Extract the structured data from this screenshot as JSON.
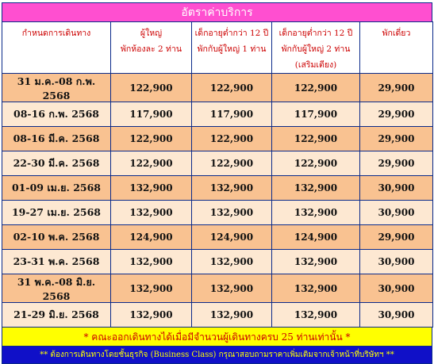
{
  "title": "อัตราค่าบริการ",
  "headers": [
    [
      "กำหนดการเดินทาง"
    ],
    [
      "ผู้ใหญ่",
      "พักห้องละ 2 ท่าน"
    ],
    [
      "เด็กอายุต่ำกว่า 12 ปี",
      "พักกับผู้ใหญ่ 1 ท่าน"
    ],
    [
      "เด็กอายุต่ำกว่า 12 ปี",
      "พักกับผู้ใหญ่ 2 ท่าน",
      "(เสริมเตียง)"
    ],
    [
      "พักเดี่ยว"
    ]
  ],
  "rows": [
    {
      "date": "31 ม.ค.-08 ก.พ. 2568",
      "adult": "122,900",
      "child1": "122,900",
      "child2": "122,900",
      "single": "29,900"
    },
    {
      "date": "08-16 ก.พ. 2568",
      "adult": "117,900",
      "child1": "117,900",
      "child2": "117,900",
      "single": "29,900"
    },
    {
      "date": "08-16 มี.ค. 2568",
      "adult": "122,900",
      "child1": "122,900",
      "child2": "122,900",
      "single": "29,900"
    },
    {
      "date": "22-30 มี.ค. 2568",
      "adult": "122,900",
      "child1": "122,900",
      "child2": "122,900",
      "single": "29,900"
    },
    {
      "date": "01-09 เม.ย. 2568",
      "adult": "132,900",
      "child1": "132,900",
      "child2": "132,900",
      "single": "30,900"
    },
    {
      "date": "19-27 เม.ย. 2568",
      "adult": "132,900",
      "child1": "132,900",
      "child2": "132,900",
      "single": "30,900"
    },
    {
      "date": "02-10 พ.ค. 2568",
      "adult": "124,900",
      "child1": "124,900",
      "child2": "124,900",
      "single": "29,900"
    },
    {
      "date": "23-31 พ.ค. 2568",
      "adult": "132,900",
      "child1": "132,900",
      "child2": "132,900",
      "single": "30,900"
    },
    {
      "date": "31 พ.ค.-08 มิ.ย. 2568",
      "adult": "132,900",
      "child1": "132,900",
      "child2": "132,900",
      "single": "30,900"
    },
    {
      "date": "21-29 มิ.ย. 2568",
      "adult": "132,900",
      "child1": "132,900",
      "child2": "132,900",
      "single": "30,900"
    }
  ],
  "note_yellow": "* คณะออกเดินทางได้เมื่อมีจำนวนผู้เดินทางครบ 25 ท่านเท่านั้น *",
  "note_blue": "** ต้องการเดินทางโดยชั้นธุรกิจ (Business Class) กรุณาสอบถามราคาเพิ่มเติมจากเจ้าหน้าที่บริษัทฯ **",
  "colors": {
    "title_bg": "#ff4fd0",
    "row_orange": "#f9c291",
    "row_cream": "#fde8d2",
    "header_text": "#cc0000",
    "note_yellow_bg": "#ffff00",
    "note_blue_bg": "#1010c8",
    "border": "#0a2a8a"
  }
}
